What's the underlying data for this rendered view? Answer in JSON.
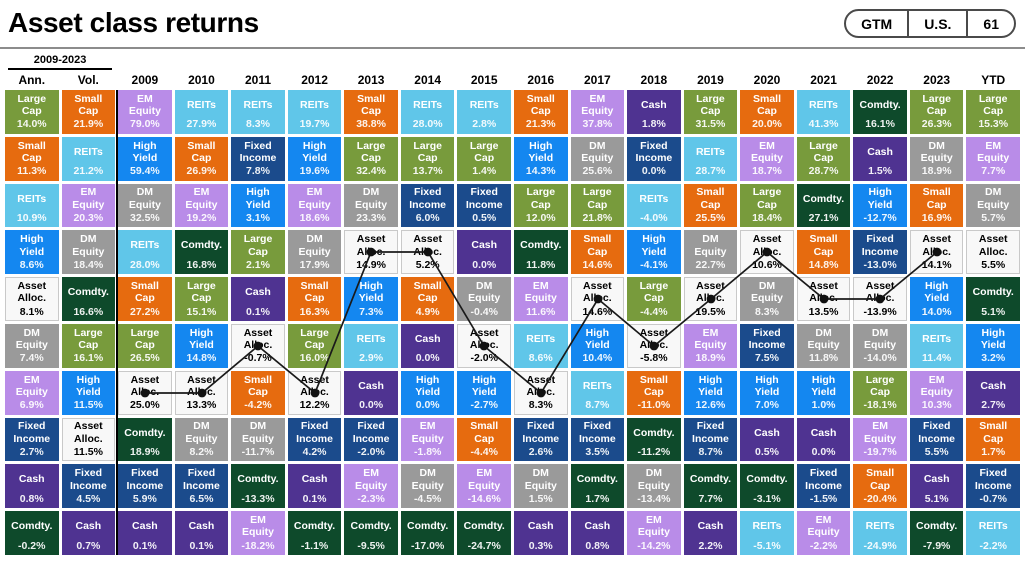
{
  "header": {
    "title": "Asset class returns",
    "badges": [
      {
        "label": "GTM"
      },
      {
        "label": "U.S."
      },
      {
        "label": "61"
      }
    ]
  },
  "chart_data": {
    "type": "heatmap",
    "title": "Asset class returns",
    "range_label": "2009-2023",
    "rows": 10,
    "columns": [
      "Ann.",
      "Vol.",
      "2009",
      "2010",
      "2011",
      "2012",
      "2013",
      "2014",
      "2015",
      "2016",
      "2017",
      "2018",
      "2019",
      "2020",
      "2021",
      "2022",
      "2023",
      "YTD"
    ],
    "line_series": {
      "name": "Asset Alloc.",
      "columns": [
        "2009",
        "2010",
        "2011",
        "2012",
        "2013",
        "2014",
        "2015",
        "2016",
        "2017",
        "2018",
        "2019",
        "2020",
        "2021",
        "2022",
        "2023"
      ],
      "line_color": "#1a1a1a",
      "dot_color": "#111111"
    },
    "asset_styles": {
      "Large Cap": {
        "bg": "#789B3C",
        "fg": "#ffffff"
      },
      "Small Cap": {
        "bg": "#E66B0F",
        "fg": "#ffffff"
      },
      "REITs": {
        "bg": "#60C6E9",
        "fg": "#ffffff"
      },
      "EM Equity": {
        "bg": "#B98CE8",
        "fg": "#ffffff"
      },
      "DM Equity": {
        "bg": "#9A9A9A",
        "fg": "#ffffff"
      },
      "High Yield": {
        "bg": "#1487F0",
        "fg": "#ffffff"
      },
      "Fixed Income": {
        "bg": "#1B4B8C",
        "fg": "#ffffff"
      },
      "Cash": {
        "bg": "#4F3391",
        "fg": "#ffffff"
      },
      "Comdty.": {
        "bg": "#0E4A2B",
        "fg": "#ffffff"
      },
      "Asset Alloc.": {
        "bg": "#F8F8F8",
        "fg": "#000000"
      }
    },
    "cells": {
      "Ann.": [
        [
          "Large Cap",
          "14.0%"
        ],
        [
          "Small Cap",
          "11.3%"
        ],
        [
          "REITs",
          "10.9%"
        ],
        [
          "High Yield",
          "8.6%"
        ],
        [
          "Asset Alloc.",
          "8.1%"
        ],
        [
          "DM Equity",
          "7.4%"
        ],
        [
          "EM Equity",
          "6.9%"
        ],
        [
          "Fixed Income",
          "2.7%"
        ],
        [
          "Cash",
          "0.8%"
        ],
        [
          "Comdty.",
          "-0.2%"
        ]
      ],
      "Vol.": [
        [
          "Small Cap",
          "21.9%"
        ],
        [
          "REITs",
          "21.2%"
        ],
        [
          "EM Equity",
          "20.3%"
        ],
        [
          "DM Equity",
          "18.4%"
        ],
        [
          "Comdty.",
          "16.6%"
        ],
        [
          "Large Cap",
          "16.1%"
        ],
        [
          "High Yield",
          "11.5%"
        ],
        [
          "Asset Alloc.",
          "11.5%"
        ],
        [
          "Fixed Income",
          "4.5%"
        ],
        [
          "Cash",
          "0.7%"
        ]
      ],
      "2009": [
        [
          "EM Equity",
          "79.0%"
        ],
        [
          "High Yield",
          "59.4%"
        ],
        [
          "DM Equity",
          "32.5%"
        ],
        [
          "REITs",
          "28.0%"
        ],
        [
          "Small Cap",
          "27.2%"
        ],
        [
          "Large Cap",
          "26.5%"
        ],
        [
          "Asset Alloc.",
          "25.0%"
        ],
        [
          "Comdty.",
          "18.9%"
        ],
        [
          "Fixed Income",
          "5.9%"
        ],
        [
          "Cash",
          "0.1%"
        ]
      ],
      "2010": [
        [
          "REITs",
          "27.9%"
        ],
        [
          "Small Cap",
          "26.9%"
        ],
        [
          "EM Equity",
          "19.2%"
        ],
        [
          "Comdty.",
          "16.8%"
        ],
        [
          "Large Cap",
          "15.1%"
        ],
        [
          "High Yield",
          "14.8%"
        ],
        [
          "Asset Alloc.",
          "13.3%"
        ],
        [
          "DM Equity",
          "8.2%"
        ],
        [
          "Fixed Income",
          "6.5%"
        ],
        [
          "Cash",
          "0.1%"
        ]
      ],
      "2011": [
        [
          "REITs",
          "8.3%"
        ],
        [
          "Fixed Income",
          "7.8%"
        ],
        [
          "High Yield",
          "3.1%"
        ],
        [
          "Large Cap",
          "2.1%"
        ],
        [
          "Cash",
          "0.1%"
        ],
        [
          "Asset Alloc.",
          "-0.7%"
        ],
        [
          "Small Cap",
          "-4.2%"
        ],
        [
          "DM Equity",
          "-11.7%"
        ],
        [
          "Comdty.",
          "-13.3%"
        ],
        [
          "EM Equity",
          "-18.2%"
        ]
      ],
      "2012": [
        [
          "REITs",
          "19.7%"
        ],
        [
          "High Yield",
          "19.6%"
        ],
        [
          "EM Equity",
          "18.6%"
        ],
        [
          "DM Equity",
          "17.9%"
        ],
        [
          "Small Cap",
          "16.3%"
        ],
        [
          "Large Cap",
          "16.0%"
        ],
        [
          "Asset Alloc.",
          "12.2%"
        ],
        [
          "Fixed Income",
          "4.2%"
        ],
        [
          "Cash",
          "0.1%"
        ],
        [
          "Comdty.",
          "-1.1%"
        ]
      ],
      "2013": [
        [
          "Small Cap",
          "38.8%"
        ],
        [
          "Large Cap",
          "32.4%"
        ],
        [
          "DM Equity",
          "23.3%"
        ],
        [
          "Asset Alloc.",
          "14.9%"
        ],
        [
          "High Yield",
          "7.3%"
        ],
        [
          "REITs",
          "2.9%"
        ],
        [
          "Cash",
          "0.0%"
        ],
        [
          "Fixed Income",
          "-2.0%"
        ],
        [
          "EM Equity",
          "-2.3%"
        ],
        [
          "Comdty.",
          "-9.5%"
        ]
      ],
      "2014": [
        [
          "REITs",
          "28.0%"
        ],
        [
          "Large Cap",
          "13.7%"
        ],
        [
          "Fixed Income",
          "6.0%"
        ],
        [
          "Asset Alloc.",
          "5.2%"
        ],
        [
          "Small Cap",
          "4.9%"
        ],
        [
          "Cash",
          "0.0%"
        ],
        [
          "High Yield",
          "0.0%"
        ],
        [
          "EM Equity",
          "-1.8%"
        ],
        [
          "DM Equity",
          "-4.5%"
        ],
        [
          "Comdty.",
          "-17.0%"
        ]
      ],
      "2015": [
        [
          "REITs",
          "2.8%"
        ],
        [
          "Large Cap",
          "1.4%"
        ],
        [
          "Fixed Income",
          "0.5%"
        ],
        [
          "Cash",
          "0.0%"
        ],
        [
          "DM Equity",
          "-0.4%"
        ],
        [
          "Asset Alloc.",
          "-2.0%"
        ],
        [
          "High Yield",
          "-2.7%"
        ],
        [
          "Small Cap",
          "-4.4%"
        ],
        [
          "EM Equity",
          "-14.6%"
        ],
        [
          "Comdty.",
          "-24.7%"
        ]
      ],
      "2016": [
        [
          "Small Cap",
          "21.3%"
        ],
        [
          "High Yield",
          "14.3%"
        ],
        [
          "Large Cap",
          "12.0%"
        ],
        [
          "Comdty.",
          "11.8%"
        ],
        [
          "EM Equity",
          "11.6%"
        ],
        [
          "REITs",
          "8.6%"
        ],
        [
          "Asset Alloc.",
          "8.3%"
        ],
        [
          "Fixed Income",
          "2.6%"
        ],
        [
          "DM Equity",
          "1.5%"
        ],
        [
          "Cash",
          "0.3%"
        ]
      ],
      "2017": [
        [
          "EM Equity",
          "37.8%"
        ],
        [
          "DM Equity",
          "25.6%"
        ],
        [
          "Large Cap",
          "21.8%"
        ],
        [
          "Small Cap",
          "14.6%"
        ],
        [
          "Asset Alloc.",
          "14.6%"
        ],
        [
          "High Yield",
          "10.4%"
        ],
        [
          "REITs",
          "8.7%"
        ],
        [
          "Fixed Income",
          "3.5%"
        ],
        [
          "Comdty.",
          "1.7%"
        ],
        [
          "Cash",
          "0.8%"
        ]
      ],
      "2018": [
        [
          "Cash",
          "1.8%"
        ],
        [
          "Fixed Income",
          "0.0%"
        ],
        [
          "REITs",
          "-4.0%"
        ],
        [
          "High Yield",
          "-4.1%"
        ],
        [
          "Large Cap",
          "-4.4%"
        ],
        [
          "Asset Alloc.",
          "-5.8%"
        ],
        [
          "Small Cap",
          "-11.0%"
        ],
        [
          "Comdty.",
          "-11.2%"
        ],
        [
          "DM Equity",
          "-13.4%"
        ],
        [
          "EM Equity",
          "-14.2%"
        ]
      ],
      "2019": [
        [
          "Large Cap",
          "31.5%"
        ],
        [
          "REITs",
          "28.7%"
        ],
        [
          "Small Cap",
          "25.5%"
        ],
        [
          "DM Equity",
          "22.7%"
        ],
        [
          "Asset Alloc.",
          "19.5%"
        ],
        [
          "EM Equity",
          "18.9%"
        ],
        [
          "High Yield",
          "12.6%"
        ],
        [
          "Fixed Income",
          "8.7%"
        ],
        [
          "Comdty.",
          "7.7%"
        ],
        [
          "Cash",
          "2.2%"
        ]
      ],
      "2020": [
        [
          "Small Cap",
          "20.0%"
        ],
        [
          "EM Equity",
          "18.7%"
        ],
        [
          "Large Cap",
          "18.4%"
        ],
        [
          "Asset Alloc.",
          "10.6%"
        ],
        [
          "DM Equity",
          "8.3%"
        ],
        [
          "Fixed Income",
          "7.5%"
        ],
        [
          "High Yield",
          "7.0%"
        ],
        [
          "Cash",
          "0.5%"
        ],
        [
          "Comdty.",
          "-3.1%"
        ],
        [
          "REITs",
          "-5.1%"
        ]
      ],
      "2021": [
        [
          "REITs",
          "41.3%"
        ],
        [
          "Large Cap",
          "28.7%"
        ],
        [
          "Comdty.",
          "27.1%"
        ],
        [
          "Small Cap",
          "14.8%"
        ],
        [
          "Asset Alloc.",
          "13.5%"
        ],
        [
          "DM Equity",
          "11.8%"
        ],
        [
          "High Yield",
          "1.0%"
        ],
        [
          "Cash",
          "0.0%"
        ],
        [
          "Fixed Income",
          "-1.5%"
        ],
        [
          "EM Equity",
          "-2.2%"
        ]
      ],
      "2022": [
        [
          "Comdty.",
          "16.1%"
        ],
        [
          "Cash",
          "1.5%"
        ],
        [
          "High Yield",
          "-12.7%"
        ],
        [
          "Fixed Income",
          "-13.0%"
        ],
        [
          "Asset Alloc.",
          "-13.9%"
        ],
        [
          "DM Equity",
          "-14.0%"
        ],
        [
          "Large Cap",
          "-18.1%"
        ],
        [
          "EM Equity",
          "-19.7%"
        ],
        [
          "Small Cap",
          "-20.4%"
        ],
        [
          "REITs",
          "-24.9%"
        ]
      ],
      "2023": [
        [
          "Large Cap",
          "26.3%"
        ],
        [
          "DM Equity",
          "18.9%"
        ],
        [
          "Small Cap",
          "16.9%"
        ],
        [
          "Asset Alloc.",
          "14.1%"
        ],
        [
          "High Yield",
          "14.0%"
        ],
        [
          "REITs",
          "11.4%"
        ],
        [
          "EM Equity",
          "10.3%"
        ],
        [
          "Fixed Income",
          "5.5%"
        ],
        [
          "Cash",
          "5.1%"
        ],
        [
          "Comdty.",
          "-7.9%"
        ]
      ],
      "YTD": [
        [
          "Large Cap",
          "15.3%"
        ],
        [
          "EM Equity",
          "7.7%"
        ],
        [
          "DM Equity",
          "5.7%"
        ],
        [
          "Asset Alloc.",
          "5.5%"
        ],
        [
          "Comdty.",
          "5.1%"
        ],
        [
          "High Yield",
          "3.2%"
        ],
        [
          "Cash",
          "2.7%"
        ],
        [
          "Small Cap",
          "1.7%"
        ],
        [
          "Fixed Income",
          "-0.7%"
        ],
        [
          "REITs",
          "-2.2%"
        ]
      ]
    }
  }
}
